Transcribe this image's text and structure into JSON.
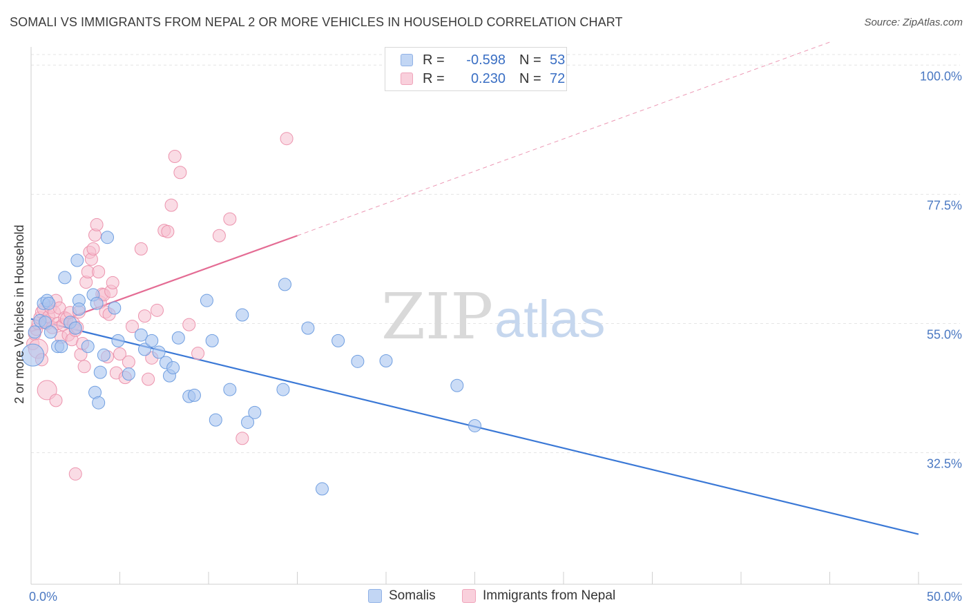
{
  "title": "SOMALI VS IMMIGRANTS FROM NEPAL 2 OR MORE VEHICLES IN HOUSEHOLD CORRELATION CHART",
  "source": "Source: ZipAtlas.com",
  "watermark": {
    "zip": "ZIP",
    "atlas": "atlas"
  },
  "legend": {
    "rows": [
      {
        "r_label": "R =",
        "r_value": "-0.598",
        "n_label": "N =",
        "n_value": "53"
      },
      {
        "r_label": "R =",
        "r_value": "0.230",
        "n_label": "N =",
        "n_value": "72"
      }
    ]
  },
  "colors": {
    "somali_fill": "#a9c5f0",
    "somali_stroke": "#6f9ee0",
    "somali_line": "#3a78d6",
    "nepal_fill": "#f6bfcf",
    "nepal_stroke": "#ec93ad",
    "nepal_line": "#e46c94",
    "grid": "#e4e4e4",
    "tick_label": "#4a78c2"
  },
  "chart_data": {
    "type": "scatter",
    "title": "SOMALI VS IMMIGRANTS FROM NEPAL 2 OR MORE VEHICLES IN HOUSEHOLD CORRELATION CHART",
    "xlabel": "",
    "ylabel": "2 or more Vehicles in Household",
    "x_tick_labels": [
      "0.0%",
      "50.0%"
    ],
    "y_tick_labels": [
      "100.0%",
      "77.5%",
      "55.0%",
      "32.5%"
    ],
    "xlim": [
      0,
      50
    ],
    "ylim": [
      12,
      104
    ],
    "y_gridlines": [
      32.5,
      55.0,
      77.5,
      100.0
    ],
    "grid": true,
    "legend_position": "top-center",
    "series": [
      {
        "name": "Somalis",
        "points": [
          [
            0.1,
            49.5
          ],
          [
            0.2,
            53.5
          ],
          [
            0.5,
            55.5
          ],
          [
            0.7,
            58.5
          ],
          [
            0.8,
            55.2
          ],
          [
            0.9,
            59
          ],
          [
            1.0,
            58.5
          ],
          [
            1.1,
            53.5
          ],
          [
            1.5,
            51
          ],
          [
            1.7,
            51
          ],
          [
            1.9,
            63
          ],
          [
            2.2,
            55.2
          ],
          [
            2.5,
            54.2
          ],
          [
            2.6,
            66
          ],
          [
            2.7,
            59
          ],
          [
            2.7,
            57.5
          ],
          [
            3.2,
            51
          ],
          [
            3.5,
            60
          ],
          [
            3.6,
            43
          ],
          [
            3.7,
            58.5
          ],
          [
            3.9,
            46.5
          ],
          [
            4.1,
            49.5
          ],
          [
            4.3,
            70
          ],
          [
            4.7,
            57.7
          ],
          [
            4.9,
            52
          ],
          [
            5.5,
            46.2
          ],
          [
            6.2,
            53
          ],
          [
            6.4,
            50.5
          ],
          [
            6.8,
            52
          ],
          [
            7.2,
            50
          ],
          [
            8.3,
            52.5
          ],
          [
            8.9,
            42.3
          ],
          [
            9.2,
            42.5
          ],
          [
            9.9,
            59
          ],
          [
            10.2,
            52
          ],
          [
            10.4,
            38.2
          ],
          [
            11.2,
            43.5
          ],
          [
            11.9,
            56.5
          ],
          [
            12.2,
            37.8
          ],
          [
            12.6,
            39.5
          ],
          [
            14.2,
            43.5
          ],
          [
            14.3,
            61.8
          ],
          [
            15.6,
            54.2
          ],
          [
            16.4,
            26.2
          ],
          [
            17.3,
            52
          ],
          [
            18.4,
            48.4
          ],
          [
            24,
            44.2
          ],
          [
            25,
            37.2
          ],
          [
            3.8,
            41.2
          ],
          [
            7.8,
            45.9
          ],
          [
            7.6,
            48.2
          ],
          [
            8.0,
            47.3
          ],
          [
            20.0,
            48.5
          ]
        ]
      },
      {
        "name": "Immigrants from Nepal",
        "points": [
          [
            0.1,
            51.5
          ],
          [
            0.2,
            53.2
          ],
          [
            0.3,
            54
          ],
          [
            0.4,
            55
          ],
          [
            0.5,
            56
          ],
          [
            0.6,
            57
          ],
          [
            0.7,
            57.5
          ],
          [
            0.8,
            55.4
          ],
          [
            0.9,
            55
          ],
          [
            1.0,
            56.2
          ],
          [
            1.1,
            57.8
          ],
          [
            1.2,
            54.3
          ],
          [
            1.3,
            57
          ],
          [
            1.4,
            59
          ],
          [
            1.5,
            55
          ],
          [
            1.6,
            57.7
          ],
          [
            1.7,
            52.6
          ],
          [
            1.8,
            54.8
          ],
          [
            1.9,
            56
          ],
          [
            2.0,
            55.8
          ],
          [
            2.1,
            53
          ],
          [
            2.2,
            56.9
          ],
          [
            2.3,
            52.2
          ],
          [
            2.4,
            55
          ],
          [
            2.5,
            53.8
          ],
          [
            2.6,
            54.3
          ],
          [
            2.7,
            57
          ],
          [
            2.8,
            49.6
          ],
          [
            2.9,
            51.5
          ],
          [
            3.0,
            47.5
          ],
          [
            3.1,
            62.2
          ],
          [
            3.2,
            64
          ],
          [
            3.3,
            67.4
          ],
          [
            3.4,
            66.2
          ],
          [
            3.5,
            68
          ],
          [
            3.6,
            70.4
          ],
          [
            3.7,
            72.2
          ],
          [
            3.8,
            64
          ],
          [
            3.9,
            58.7
          ],
          [
            4.0,
            60.1
          ],
          [
            4.1,
            60
          ],
          [
            4.2,
            57
          ],
          [
            4.3,
            49.2
          ],
          [
            4.4,
            56.6
          ],
          [
            4.5,
            60.6
          ],
          [
            4.6,
            62.1
          ],
          [
            4.8,
            46.4
          ],
          [
            5.0,
            49.7
          ],
          [
            5.3,
            45.6
          ],
          [
            5.5,
            48.3
          ],
          [
            5.7,
            54.5
          ],
          [
            6.2,
            68
          ],
          [
            6.4,
            56.3
          ],
          [
            6.6,
            45.3
          ],
          [
            6.8,
            49
          ],
          [
            7.1,
            57.3
          ],
          [
            7.5,
            71.2
          ],
          [
            7.7,
            71
          ],
          [
            7.9,
            75.6
          ],
          [
            8.1,
            84.1
          ],
          [
            8.4,
            81.3
          ],
          [
            8.9,
            54.8
          ],
          [
            9.4,
            49.8
          ],
          [
            10.6,
            70.3
          ],
          [
            11.2,
            73.2
          ],
          [
            11.9,
            35
          ],
          [
            0.4,
            50.6
          ],
          [
            0.6,
            48.7
          ],
          [
            0.9,
            43.4
          ],
          [
            1.4,
            41.6
          ],
          [
            2.5,
            28.8
          ],
          [
            14.4,
            87.2
          ]
        ]
      }
    ],
    "trend_lines": [
      {
        "series": "Somalis",
        "x": [
          0,
          50
        ],
        "y": [
          55.8,
          18.3
        ]
      },
      {
        "series": "Immigrants from Nepal",
        "solid_x": [
          0,
          15
        ],
        "solid_y": [
          53.6,
          70.3
        ],
        "dashed_x": [
          15,
          45
        ],
        "dashed_y": [
          70.3,
          104
        ]
      }
    ]
  },
  "bottom_legend": [
    "Somalis",
    "Immigrants from Nepal"
  ]
}
